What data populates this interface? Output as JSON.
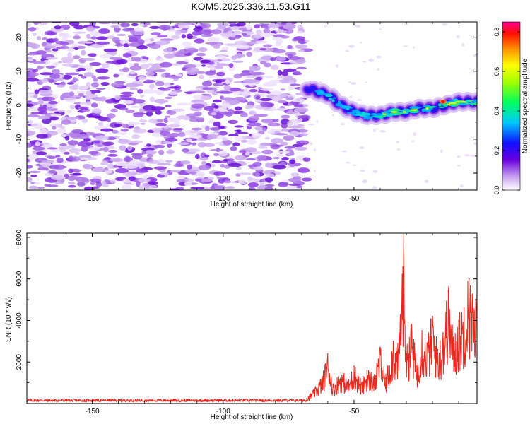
{
  "title": "KOM5.2025.336.11.53.G11",
  "chart_data": [
    {
      "type": "heatmap",
      "name": "spectrogram",
      "xlabel": "Height of straight line (km)",
      "ylabel": "Frequency (Hz)",
      "xlim": [
        -175,
        -3
      ],
      "ylim": [
        -25,
        24.5
      ],
      "x_ticks": [
        -150,
        -100,
        -50
      ],
      "x_tick_labels": [
        "-150",
        "-100",
        "-50"
      ],
      "y_ticks": [
        20,
        10,
        0,
        -10,
        -20
      ],
      "y_tick_labels": [
        "20",
        "10",
        "0",
        "-10",
        "-20"
      ],
      "noise_region_x": [
        -175,
        -68
      ],
      "signal_track": {
        "x": [
          -68,
          -60,
          -55,
          -50,
          -45,
          -40,
          -35,
          -30,
          -25,
          -20,
          -15,
          -10,
          -5,
          -3
        ],
        "freq": [
          5,
          3,
          0,
          -2,
          -3,
          -3,
          -2,
          -2,
          -1,
          -1,
          0,
          1,
          1,
          1
        ]
      },
      "peak": {
        "x": -16,
        "freq": 1,
        "amplitude": 0.85
      },
      "colorbar": {
        "label": "Normalized spectral amplitude",
        "range": [
          0,
          0.85
        ],
        "ticks": [
          0.0,
          0.2,
          0.4,
          0.6,
          0.8
        ],
        "tick_labels": [
          "0.0",
          "0.2",
          "0.4",
          "0.6",
          "0.8"
        ]
      }
    },
    {
      "type": "line",
      "name": "snr",
      "xlabel": "Height of straight line (km)",
      "ylabel": "SNR (10 * v/v)",
      "xlim": [
        -175,
        -3
      ],
      "ylim": [
        0,
        8200
      ],
      "x_ticks": [
        -150,
        -100,
        -50
      ],
      "x_tick_labels": [
        "-150",
        "-100",
        "-50"
      ],
      "y_ticks": [
        2000,
        4000,
        6000,
        8000
      ],
      "y_tick_labels": [
        "2000",
        "4000",
        "6000",
        "8000"
      ],
      "series": [
        {
          "name": "SNR",
          "color": "#e8281e",
          "x": [
            -175,
            -170,
            -160,
            -150,
            -140,
            -130,
            -120,
            -110,
            -100,
            -90,
            -80,
            -72,
            -68,
            -65,
            -62,
            -60,
            -58,
            -55,
            -52,
            -50,
            -47,
            -45,
            -42,
            -40,
            -38,
            -35,
            -33,
            -31,
            -30,
            -28,
            -26,
            -24,
            -22,
            -20,
            -18,
            -16,
            -14,
            -12,
            -10,
            -8,
            -6,
            -4,
            -3
          ],
          "y": [
            150,
            180,
            150,
            170,
            160,
            150,
            170,
            160,
            150,
            160,
            160,
            180,
            250,
            700,
            1300,
            2400,
            900,
            1500,
            1100,
            1800,
            1000,
            1600,
            1300,
            2700,
            1200,
            3000,
            2600,
            8200,
            2400,
            3800,
            1800,
            3500,
            2900,
            4200,
            2600,
            3400,
            5400,
            3200,
            4000,
            4600,
            6000,
            4400,
            5200
          ]
        }
      ]
    }
  ]
}
